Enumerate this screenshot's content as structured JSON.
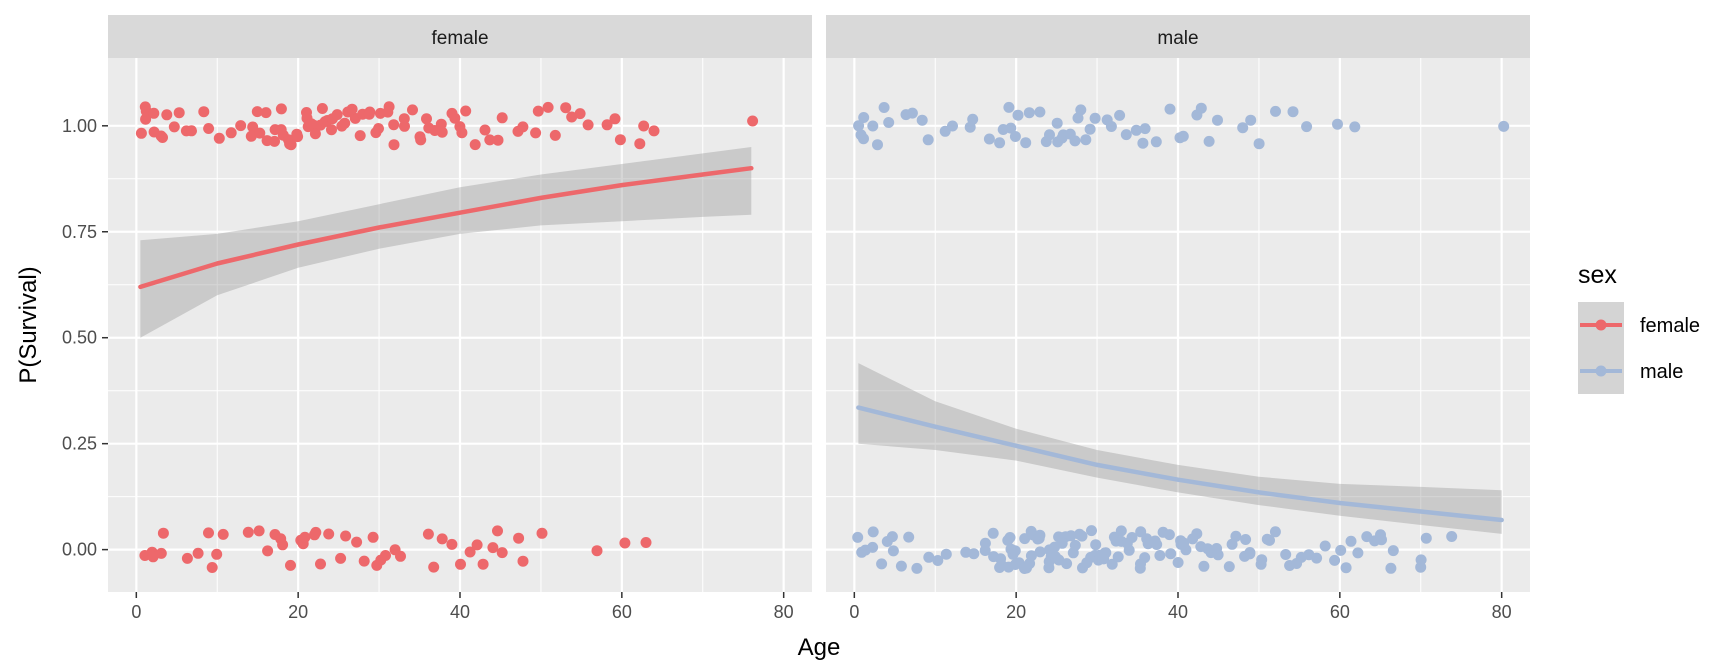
{
  "chart_data": {
    "type": "scatter",
    "subtype": "faceted jittered scatter with logistic regression fit and confidence band",
    "xlabel": "Age",
    "ylabel": "P(Survival)",
    "xlim": [
      -3.5,
      83.5
    ],
    "ylim": [
      -0.1,
      1.16
    ],
    "x_ticks": [
      0,
      20,
      40,
      60,
      80
    ],
    "x_tick_labels": [
      "0",
      "20",
      "40",
      "60",
      "80"
    ],
    "y_ticks": [
      0,
      0.25,
      0.5,
      0.75,
      1
    ],
    "y_tick_labels": [
      "0.00",
      "0.25",
      "0.50",
      "0.75",
      "1.00"
    ],
    "grid": true,
    "legend": {
      "title": "sex",
      "placement": "right",
      "entries": [
        {
          "label": "female",
          "color": "#ED686B"
        },
        {
          "label": "male",
          "color": "#A3B8D8"
        }
      ]
    },
    "facets": [
      {
        "name": "female",
        "color": "#ED686B",
        "survived_ages": [
          0.5,
          1,
          1,
          1.5,
          2,
          2,
          3,
          3,
          4,
          5,
          5,
          6,
          7,
          8,
          9,
          10,
          12,
          13,
          14,
          14,
          15,
          15,
          16,
          16,
          17,
          17,
          18,
          18,
          18,
          19,
          19,
          19,
          20,
          20,
          21,
          21,
          21,
          22,
          22,
          22,
          23,
          23,
          23,
          24,
          24,
          24,
          25,
          25,
          26,
          26,
          27,
          27,
          28,
          28,
          29,
          29,
          30,
          30,
          30,
          31,
          31,
          32,
          32,
          33,
          33,
          34,
          35,
          35,
          36,
          36,
          37,
          38,
          38,
          39,
          39,
          40,
          40,
          41,
          42,
          43,
          44,
          45,
          45,
          47,
          48,
          49,
          50,
          51,
          52,
          53,
          54,
          55,
          56,
          58,
          59,
          60,
          62,
          63,
          64,
          76
        ],
        "died_ages": [
          1,
          2,
          2,
          3,
          3,
          6,
          8,
          9,
          9,
          10,
          11,
          14,
          15,
          16,
          17,
          18,
          18,
          19,
          20,
          21,
          21,
          22,
          22,
          23,
          24,
          25,
          26,
          27,
          28,
          29,
          30,
          30,
          31,
          32,
          33,
          36,
          37,
          38,
          39,
          40,
          41,
          42,
          43,
          44,
          45,
          45,
          47,
          48,
          50,
          57,
          60,
          63
        ],
        "fit": {
          "x": [
            0.5,
            10,
            20,
            30,
            40,
            50,
            60,
            70,
            76
          ],
          "y": [
            0.62,
            0.675,
            0.72,
            0.76,
            0.795,
            0.83,
            0.86,
            0.885,
            0.9
          ],
          "ci_lower": [
            0.5,
            0.6,
            0.665,
            0.71,
            0.745,
            0.765,
            0.775,
            0.785,
            0.79
          ],
          "ci_upper": [
            0.73,
            0.745,
            0.775,
            0.815,
            0.855,
            0.885,
            0.91,
            0.935,
            0.95
          ]
        }
      },
      {
        "name": "male",
        "color": "#A3B8D8",
        "survived_ages": [
          0.5,
          1,
          1,
          1.5,
          2,
          3,
          4,
          4,
          6,
          7,
          8,
          9,
          11,
          12,
          14,
          15,
          17,
          18,
          18,
          19,
          19,
          20,
          20,
          21,
          22,
          23,
          24,
          24,
          25,
          25,
          26,
          26,
          27,
          27,
          28,
          28,
          29,
          29,
          30,
          31,
          32,
          33,
          34,
          35,
          36,
          36,
          37,
          39,
          40,
          41,
          42,
          43,
          44,
          45,
          48,
          49,
          50,
          52,
          54,
          56,
          60,
          62,
          80
        ],
        "died_ages": [
          0.5,
          1,
          1,
          2,
          2,
          3,
          4,
          5,
          5,
          6,
          7,
          8,
          9,
          10,
          11,
          14,
          15,
          16,
          16,
          17,
          17,
          18,
          18,
          18,
          19,
          19,
          19,
          19,
          20,
          20,
          20,
          20,
          21,
          21,
          21,
          21,
          22,
          22,
          22,
          22,
          23,
          23,
          23,
          23,
          24,
          24,
          24,
          24,
          25,
          25,
          25,
          25,
          26,
          26,
          26,
          26,
          27,
          27,
          27,
          28,
          28,
          28,
          29,
          29,
          29,
          30,
          30,
          30,
          30,
          31,
          31,
          31,
          32,
          32,
          32,
          33,
          33,
          33,
          34,
          34,
          34,
          35,
          35,
          35,
          36,
          36,
          36,
          37,
          37,
          38,
          38,
          39,
          39,
          40,
          40,
          40,
          41,
          41,
          42,
          42,
          43,
          43,
          44,
          44,
          45,
          45,
          46,
          47,
          47,
          48,
          48,
          49,
          49,
          50,
          50,
          51,
          51,
          52,
          53,
          54,
          55,
          55,
          56,
          57,
          58,
          59,
          60,
          61,
          61,
          62,
          63,
          64,
          65,
          65,
          66,
          67,
          70,
          70,
          71,
          74
        ],
        "fit": {
          "x": [
            0.5,
            10,
            20,
            30,
            40,
            50,
            60,
            70,
            80
          ],
          "y": [
            0.335,
            0.29,
            0.245,
            0.2,
            0.165,
            0.135,
            0.11,
            0.09,
            0.07
          ],
          "ci_lower": [
            0.25,
            0.235,
            0.21,
            0.17,
            0.135,
            0.105,
            0.08,
            0.058,
            0.037
          ],
          "ci_upper": [
            0.44,
            0.35,
            0.285,
            0.235,
            0.2,
            0.172,
            0.155,
            0.148,
            0.14
          ]
        }
      }
    ]
  }
}
